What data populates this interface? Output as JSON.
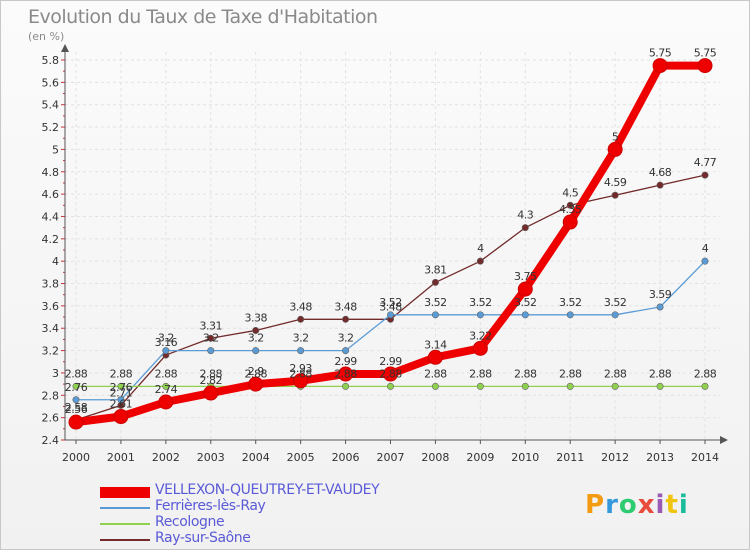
{
  "title": "Evolution du Taux de Taxe d'Habitation",
  "unit": "(en %)",
  "logo": "Proxiti",
  "chart_data": {
    "type": "line",
    "x": [
      "2000",
      "2001",
      "2002",
      "2003",
      "2004",
      "2005",
      "2006",
      "2007",
      "2008",
      "2009",
      "2010",
      "2011",
      "2012",
      "2013",
      "2014"
    ],
    "ylim": [
      2.4,
      5.8
    ],
    "yticks": [
      "2.4",
      "2.6",
      "2.8",
      "3",
      "3.2",
      "3.4",
      "3.6",
      "3.8",
      "4",
      "4.2",
      "4.4",
      "4.6",
      "4.8",
      "5",
      "5.2",
      "5.4",
      "5.6",
      "5.8"
    ],
    "grid": true,
    "legend_position": "bottom-left",
    "series": [
      {
        "name": "VELLEXON-QUEUTREY-ET-VAUDEY",
        "color": "#ee0000",
        "values": [
          2.56,
          2.61,
          2.74,
          2.82,
          2.9,
          2.93,
          2.99,
          2.99,
          3.14,
          3.22,
          3.75,
          4.35,
          5.0,
          5.75,
          5.75
        ],
        "labels": [
          "2.56",
          "2.61",
          "2.74",
          "2.82",
          "2.9",
          "2.93",
          "2.99",
          "2.99",
          "3.14",
          "3.22",
          "3.75",
          "4.35",
          "5",
          "5.75",
          "5.75"
        ]
      },
      {
        "name": "Ferrières-lès-Ray",
        "color": "#5b9bd5",
        "values": [
          2.76,
          2.76,
          3.2,
          3.2,
          3.2,
          3.2,
          3.2,
          3.52,
          3.52,
          3.52,
          3.52,
          3.52,
          3.52,
          3.59,
          4.0
        ],
        "labels": [
          "2.76",
          "2.76",
          "3.2",
          "3.2",
          "3.2",
          "3.2",
          "3.2",
          "3.52",
          "3.52",
          "3.52",
          "3.52",
          "3.52",
          "3.52",
          "3.59",
          "4"
        ]
      },
      {
        "name": "Recologne",
        "color": "#8fd14f",
        "values": [
          2.88,
          2.88,
          2.88,
          2.88,
          2.88,
          2.88,
          2.88,
          2.88,
          2.88,
          2.88,
          2.88,
          2.88,
          2.88,
          2.88,
          2.88
        ],
        "labels": [
          "2.88",
          "2.88",
          "2.88",
          "2.88",
          "2.88",
          "2.88",
          "2.88",
          "2.88",
          "2.88",
          "2.88",
          "2.88",
          "2.88",
          "2.88",
          "2.88",
          "2.88"
        ]
      },
      {
        "name": "Ray-sur-Saône",
        "color": "#722a2a",
        "values": [
          2.58,
          2.71,
          3.16,
          3.31,
          3.38,
          3.48,
          3.48,
          3.48,
          3.81,
          4.0,
          4.3,
          4.5,
          4.59,
          4.68,
          4.77
        ],
        "labels": [
          "2.58",
          "2.71",
          "3.16",
          "3.31",
          "3.38",
          "3.48",
          "3.48",
          "3.48",
          "3.81",
          "4",
          "4.3",
          "4.5",
          "4.59",
          "4.68",
          "4.77"
        ]
      }
    ]
  },
  "legend": [
    {
      "label": "VELLEXON-QUEUTREY-ET-VAUDEY",
      "color": "#ee0000",
      "text_color": "#5a5ad8"
    },
    {
      "label": "Ferrières-lès-Ray",
      "color": "#5b9bd5",
      "text_color": "#5a5ad8"
    },
    {
      "label": "Recologne",
      "color": "#8fd14f",
      "text_color": "#5a5ad8"
    },
    {
      "label": "Ray-sur-Saône",
      "color": "#722a2a",
      "text_color": "#5a5ad8"
    }
  ]
}
